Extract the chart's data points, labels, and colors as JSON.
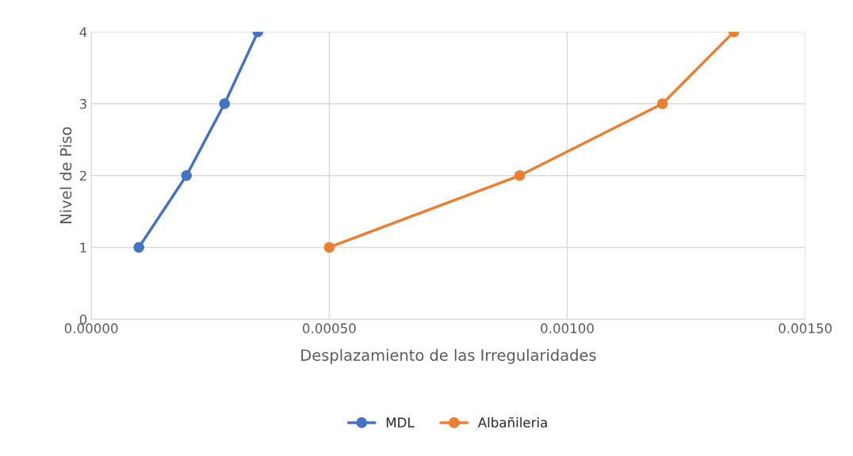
{
  "chart_data": {
    "type": "line",
    "xlabel": "Desplazamiento de las Irregularidades",
    "ylabel": "Nivel de Piso",
    "series": [
      {
        "name": "MDL",
        "color": "#4472c4",
        "x": [
          0.0001,
          0.0002,
          0.00028,
          0.00035
        ],
        "values": [
          1,
          2,
          3,
          4
        ]
      },
      {
        "name": "Albañileria",
        "color": "#ed7d31",
        "x": [
          0.0005,
          0.0009,
          0.0012,
          0.00135
        ],
        "values": [
          1,
          2,
          3,
          4
        ]
      }
    ],
    "xlim": [
      0,
      0.0015
    ],
    "xticks": [
      {
        "value": 0,
        "label": "0.00000"
      },
      {
        "value": 0.0005,
        "label": "0.00050"
      },
      {
        "value": 0.001,
        "label": "0.00100"
      },
      {
        "value": 0.0015,
        "label": "0.00150"
      }
    ],
    "ylim": [
      0,
      4
    ],
    "yticks": [
      0,
      1,
      2,
      3,
      4
    ],
    "grid": true,
    "legend": "bottom",
    "marker": "circle",
    "line_style": "solid"
  }
}
